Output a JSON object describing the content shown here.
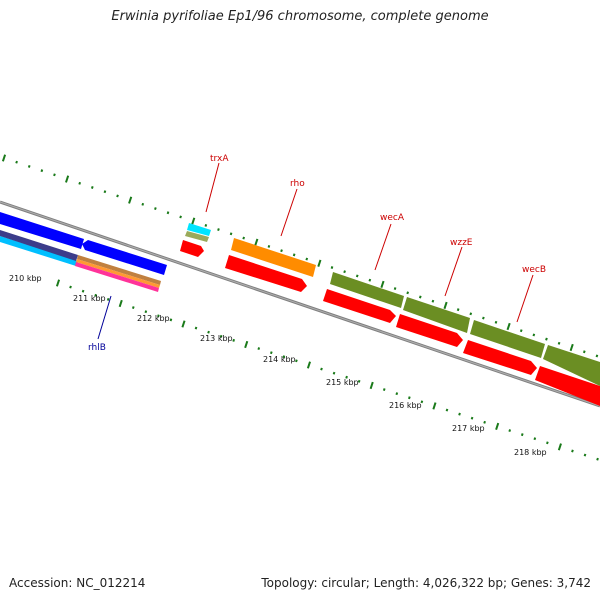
{
  "title": "Erwinia pyrifoliae Ep1/96 chromosome, complete genome",
  "footer": {
    "accession": "Accession: NC_012214",
    "stats": "Topology: circular; Length: 4,026,322 bp; Genes: 3,742"
  },
  "colors": {
    "forward_cds": "#ff0000",
    "reverse_cds": "#0000ff",
    "gene_label": "#cc0000",
    "reverse_label": "#000099",
    "olive": "#6b8e23",
    "orange": "#ff8c00",
    "ticks": "#1a7a1a",
    "backbone": "#888888"
  },
  "tick_labels": [
    "210 kbp",
    "211 kbp",
    "212 kbp",
    "213 kbp",
    "214 kbp",
    "215 kbp",
    "216 kbp",
    "217 kbp",
    "218 kbp"
  ],
  "gene_labels": [
    {
      "text": "trxA",
      "strand": "forward"
    },
    {
      "text": "rho",
      "strand": "forward"
    },
    {
      "text": "wecA",
      "strand": "forward"
    },
    {
      "text": "wzzE",
      "strand": "forward"
    },
    {
      "text": "wecB",
      "strand": "forward"
    },
    {
      "text": "rhlB",
      "strand": "reverse"
    }
  ]
}
